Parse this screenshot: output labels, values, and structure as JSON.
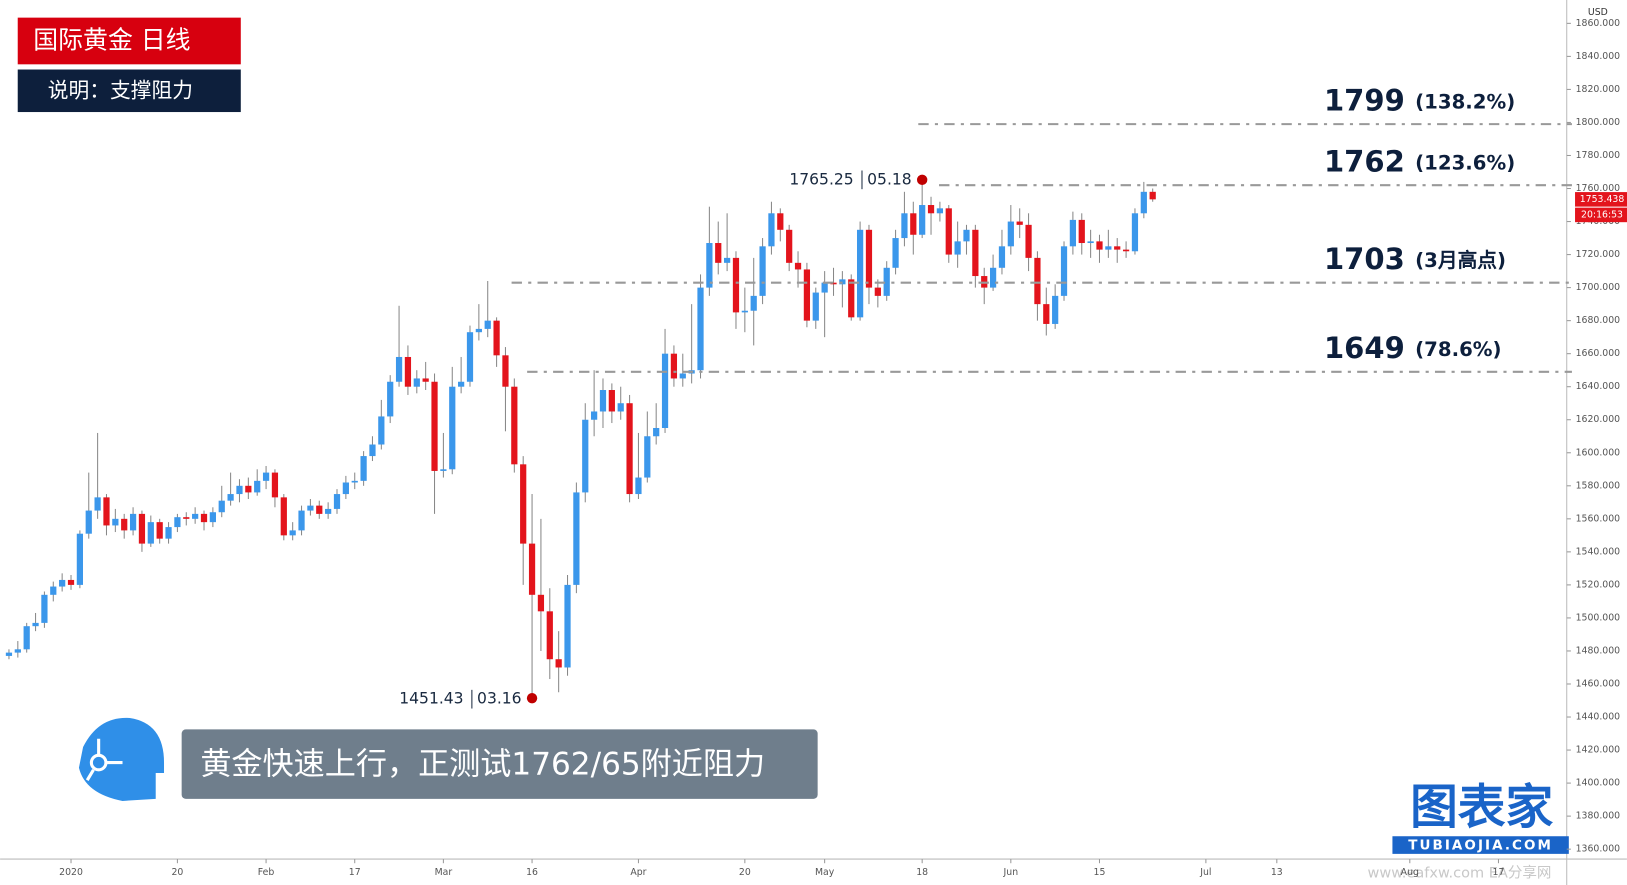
{
  "header": {
    "title": "国际黄金  日线",
    "subtitle": "说明：支撑阻力"
  },
  "caption": "黄金快速上行，正测试1762/65附近阻力",
  "brand": {
    "name": "图表家",
    "site": "TUBIAOJIA.COM",
    "watermark": "www.eafxw.com  EA分享网"
  },
  "chart_data": {
    "type": "candlestick",
    "y_unit": "USD",
    "up_color": "#3b97eb",
    "down_color": "#e3141c",
    "x": [
      0,
      1,
      2,
      3,
      4,
      5,
      6,
      7,
      8,
      9,
      10,
      11,
      12,
      13,
      14,
      15,
      16,
      17,
      18,
      19,
      20,
      21,
      22,
      23,
      24,
      25,
      26,
      27,
      28,
      29,
      30,
      31,
      32,
      33,
      34,
      35,
      36,
      37,
      38,
      39,
      40,
      41,
      42,
      43,
      44,
      45,
      46,
      47,
      48,
      49,
      50,
      51,
      52,
      53,
      54,
      55,
      56,
      57,
      58,
      59,
      60,
      61,
      62,
      63,
      64,
      65,
      66,
      67,
      68,
      69,
      70,
      71,
      72,
      73,
      74,
      75,
      76,
      77,
      78,
      79,
      80,
      81,
      82,
      83,
      84,
      85,
      86,
      87,
      88,
      89,
      90,
      91,
      92,
      93,
      94,
      95,
      96,
      97,
      98,
      99,
      100,
      101,
      102,
      103,
      104,
      105,
      106,
      107,
      108,
      109,
      110,
      111,
      112,
      113,
      114,
      115,
      116,
      117,
      118,
      119,
      120,
      121,
      122,
      123,
      124,
      125,
      126,
      127,
      128,
      129
    ],
    "open": [
      1477,
      1479,
      1481,
      1495,
      1497,
      1514,
      1519,
      1523,
      1520,
      1551,
      1565,
      1573,
      1556,
      1560,
      1553,
      1563,
      1545,
      1558,
      1548,
      1555,
      1561,
      1560,
      1563,
      1558,
      1564,
      1571,
      1575,
      1580,
      1576,
      1583,
      1588,
      1573,
      1550,
      1553,
      1565,
      1568,
      1563,
      1566,
      1575,
      1582,
      1583,
      1598,
      1605,
      1622,
      1643,
      1658,
      1640,
      1645,
      1643,
      1589,
      1590,
      1640,
      1643,
      1673,
      1675,
      1680,
      1659,
      1640,
      1593,
      1545,
      1514,
      1504,
      1475,
      1470,
      1520,
      1576,
      1620,
      1625,
      1638,
      1625,
      1630,
      1575,
      1585,
      1610,
      1615,
      1660,
      1645,
      1648,
      1650,
      1700,
      1727,
      1715,
      1718,
      1685,
      1686,
      1695,
      1725,
      1745,
      1735,
      1715,
      1711,
      1680,
      1697,
      1703,
      1702,
      1705,
      1682,
      1735,
      1700,
      1695,
      1712,
      1730,
      1745,
      1732,
      1750,
      1745,
      1748,
      1720,
      1728,
      1735,
      1707,
      1700,
      1712,
      1725,
      1740,
      1738,
      1718,
      1690,
      1678,
      1695,
      1725,
      1741,
      1727,
      1728,
      1723,
      1725,
      1723,
      1722,
      1745,
      1758
    ],
    "high": [
      1481,
      1486,
      1497,
      1503,
      1516,
      1522,
      1527,
      1526,
      1553,
      1588,
      1612,
      1575,
      1566,
      1563,
      1567,
      1565,
      1562,
      1560,
      1558,
      1563,
      1564,
      1567,
      1565,
      1567,
      1580,
      1588,
      1584,
      1585,
      1590,
      1592,
      1590,
      1575,
      1558,
      1568,
      1572,
      1571,
      1570,
      1578,
      1586,
      1588,
      1601,
      1610,
      1632,
      1647,
      1689,
      1665,
      1650,
      1655,
      1648,
      1612,
      1652,
      1658,
      1677,
      1690,
      1704,
      1682,
      1664,
      1645,
      1598,
      1575,
      1560,
      1518,
      1492,
      1526,
      1582,
      1630,
      1650,
      1645,
      1642,
      1640,
      1635,
      1612,
      1625,
      1630,
      1675,
      1665,
      1660,
      1690,
      1708,
      1749,
      1740,
      1745,
      1722,
      1700,
      1718,
      1730,
      1752,
      1748,
      1738,
      1722,
      1715,
      1700,
      1710,
      1712,
      1710,
      1708,
      1740,
      1738,
      1705,
      1716,
      1735,
      1758,
      1752,
      1765.25,
      1755,
      1752,
      1750,
      1740,
      1738,
      1738,
      1712,
      1720,
      1735,
      1750,
      1748,
      1745,
      1722,
      1700,
      1702,
      1728,
      1746,
      1745,
      1735,
      1732,
      1735,
      1730,
      1728,
      1748,
      1764,
      1760
    ],
    "low": [
      1475,
      1476,
      1479,
      1492,
      1494,
      1510,
      1516,
      1517,
      1518,
      1548,
      1560,
      1550,
      1552,
      1548,
      1550,
      1540,
      1543,
      1545,
      1545,
      1552,
      1556,
      1557,
      1553,
      1555,
      1561,
      1568,
      1570,
      1572,
      1574,
      1578,
      1567,
      1547,
      1547,
      1550,
      1562,
      1560,
      1560,
      1563,
      1572,
      1578,
      1580,
      1595,
      1602,
      1618,
      1640,
      1635,
      1636,
      1638,
      1563,
      1585,
      1587,
      1636,
      1640,
      1668,
      1670,
      1652,
      1613,
      1588,
      1520,
      1451.43,
      1480,
      1463,
      1455,
      1465,
      1515,
      1570,
      1610,
      1615,
      1618,
      1620,
      1570,
      1572,
      1582,
      1605,
      1612,
      1640,
      1640,
      1642,
      1645,
      1695,
      1708,
      1710,
      1675,
      1673,
      1665,
      1690,
      1720,
      1728,
      1710,
      1700,
      1676,
      1675,
      1670,
      1695,
      1688,
      1680,
      1680,
      1690,
      1688,
      1692,
      1708,
      1725,
      1720,
      1730,
      1732,
      1740,
      1715,
      1712,
      1720,
      1700,
      1690,
      1698,
      1708,
      1720,
      1730,
      1710,
      1680,
      1671,
      1675,
      1692,
      1720,
      1720,
      1718,
      1715,
      1718,
      1715,
      1718,
      1720,
      1742,
      1752
    ],
    "close": [
      1479,
      1481,
      1495,
      1497,
      1514,
      1519,
      1523,
      1520,
      1551,
      1565,
      1573,
      1556,
      1560,
      1553,
      1563,
      1545,
      1558,
      1548,
      1555,
      1561,
      1560,
      1563,
      1558,
      1564,
      1571,
      1575,
      1580,
      1576,
      1583,
      1588,
      1573,
      1550,
      1553,
      1565,
      1568,
      1563,
      1566,
      1575,
      1582,
      1583,
      1598,
      1605,
      1622,
      1643,
      1658,
      1640,
      1645,
      1643,
      1589,
      1590,
      1640,
      1643,
      1673,
      1675,
      1680,
      1659,
      1640,
      1593,
      1545,
      1514,
      1504,
      1475,
      1470,
      1520,
      1576,
      1620,
      1625,
      1638,
      1625,
      1630,
      1575,
      1585,
      1610,
      1615,
      1660,
      1645,
      1648,
      1650,
      1700,
      1727,
      1715,
      1718,
      1685,
      1686,
      1695,
      1725,
      1745,
      1735,
      1715,
      1711,
      1680,
      1697,
      1703,
      1702,
      1705,
      1682,
      1735,
      1700,
      1695,
      1712,
      1730,
      1745,
      1732,
      1750,
      1745,
      1748,
      1720,
      1728,
      1735,
      1707,
      1700,
      1712,
      1725,
      1740,
      1738,
      1718,
      1690,
      1678,
      1695,
      1725,
      1741,
      1727,
      1728,
      1723,
      1725,
      1723,
      1722,
      1745,
      1758,
      1753.438
    ],
    "xlim": [
      -1,
      175.7
    ],
    "xticks": [
      {
        "value": 7,
        "label": "2020"
      },
      {
        "value": 19,
        "label": "20"
      },
      {
        "value": 29,
        "label": "Feb"
      },
      {
        "value": 39,
        "label": "17"
      },
      {
        "value": 49,
        "label": "Mar"
      },
      {
        "value": 59,
        "label": "16"
      },
      {
        "value": 71,
        "label": "Apr"
      },
      {
        "value": 83,
        "label": "20"
      },
      {
        "value": 92,
        "label": "May"
      },
      {
        "value": 103,
        "label": "18"
      },
      {
        "value": 113,
        "label": "Jun"
      },
      {
        "value": 123,
        "label": "15"
      },
      {
        "value": 135,
        "label": "Jul"
      },
      {
        "value": 143,
        "label": "13"
      },
      {
        "value": 158,
        "label": "Aug"
      },
      {
        "value": 168,
        "label": "17"
      }
    ],
    "ylim": [
      1354,
      1871
    ],
    "yticks": [
      {
        "value": 1360,
        "label": "1360.000"
      },
      {
        "value": 1380,
        "label": "1380.000"
      },
      {
        "value": 1400,
        "label": "1400.000"
      },
      {
        "value": 1420,
        "label": "1420.000"
      },
      {
        "value": 1440,
        "label": "1440.000"
      },
      {
        "value": 1460,
        "label": "1460.000"
      },
      {
        "value": 1480,
        "label": "1480.000"
      },
      {
        "value": 1500,
        "label": "1500.000"
      },
      {
        "value": 1520,
        "label": "1520.000"
      },
      {
        "value": 1540,
        "label": "1540.000"
      },
      {
        "value": 1560,
        "label": "1560.000"
      },
      {
        "value": 1580,
        "label": "1580.000"
      },
      {
        "value": 1600,
        "label": "1600.000"
      },
      {
        "value": 1620,
        "label": "1620.000"
      },
      {
        "value": 1640,
        "label": "1640.000"
      },
      {
        "value": 1660,
        "label": "1660.000"
      },
      {
        "value": 1680,
        "label": "1680.000"
      },
      {
        "value": 1700,
        "label": "1700.000"
      },
      {
        "value": 1720,
        "label": "1720.000"
      },
      {
        "value": 1740,
        "label": "1740.000"
      },
      {
        "value": 1760,
        "label": "1760.000"
      },
      {
        "value": 1780,
        "label": "1780.000"
      },
      {
        "value": 1800,
        "label": "1800.000"
      },
      {
        "value": 1820,
        "label": "1820.000"
      },
      {
        "value": 1840,
        "label": "1840.000"
      },
      {
        "value": 1860,
        "label": "1860.000"
      }
    ],
    "levels": [
      {
        "value": 1799,
        "note": "(138.2%)"
      },
      {
        "value": 1762,
        "note": "(123.6%)"
      },
      {
        "value": 1703,
        "note": "(3月高点)"
      },
      {
        "value": 1649,
        "note": "(78.6%)"
      }
    ],
    "annotations": [
      {
        "value": 1765.25,
        "date": "05.18"
      },
      {
        "value": 1451.43,
        "date": "03.16"
      }
    ],
    "last_price": {
      "value": 1753.438,
      "time": "20:16:53"
    }
  }
}
